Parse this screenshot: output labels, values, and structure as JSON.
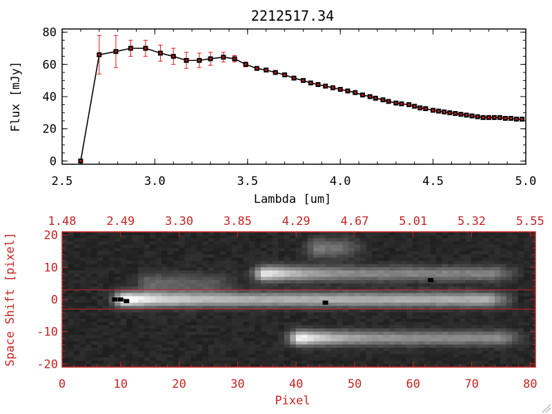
{
  "chart_data": [
    {
      "type": "line",
      "title": "2212517.34",
      "xlabel": "Lambda [um]",
      "ylabel": "Flux [mJy]",
      "xlim": [
        2.5,
        5.0
      ],
      "ylim": [
        -2,
        82
      ],
      "x_tick_labels": [
        "2.5",
        "3.0",
        "3.5",
        "4.0",
        "4.5",
        "5.0"
      ],
      "y_tick_labels": [
        "0",
        "20",
        "40",
        "60",
        "80"
      ],
      "x_tick_values": [
        2.5,
        3.0,
        3.5,
        4.0,
        4.5,
        5.0
      ],
      "y_tick_values": [
        0,
        20,
        40,
        60,
        80
      ],
      "series": [
        {
          "x": [
            2.6,
            2.7,
            2.79,
            2.87,
            2.95,
            3.03,
            3.1,
            3.17,
            3.24,
            3.3,
            3.37,
            3.43,
            3.49,
            3.55,
            3.6,
            3.65,
            3.7,
            3.75,
            3.8,
            3.84,
            3.88,
            3.92,
            3.96,
            4.0,
            4.04,
            4.08,
            4.12,
            4.16,
            4.19,
            4.23,
            4.26,
            4.3,
            4.33,
            4.37,
            4.4,
            4.43,
            4.46,
            4.5,
            4.53,
            4.56,
            4.59,
            4.62,
            4.65,
            4.68,
            4.71,
            4.74,
            4.77,
            4.8,
            4.83,
            4.86,
            4.89,
            4.92,
            4.95,
            4.98
          ],
          "y": [
            0,
            66,
            68,
            70,
            70,
            67,
            65,
            62.5,
            62.5,
            63.5,
            64.5,
            63.5,
            60,
            57.5,
            56.5,
            55,
            53.5,
            51.5,
            50,
            48.5,
            47.5,
            46.5,
            45.5,
            44.5,
            43.5,
            42.5,
            41,
            40,
            39,
            38,
            37,
            36,
            35.5,
            35,
            34,
            33,
            32.5,
            31.5,
            31,
            30.5,
            30,
            29.5,
            29,
            28.5,
            28,
            27.5,
            27,
            27,
            27,
            27,
            26.5,
            26.5,
            26,
            26
          ],
          "yerr": [
            0,
            12,
            10,
            5,
            5,
            5,
            5,
            5,
            4.5,
            4,
            3,
            2,
            1.5,
            1,
            1,
            1,
            1,
            1,
            1,
            1,
            1,
            1,
            1,
            1,
            1,
            1,
            1,
            1,
            1,
            1,
            1,
            1,
            1,
            1,
            1,
            1,
            1,
            1,
            1,
            1,
            1,
            1,
            1,
            1,
            1,
            1,
            1,
            1,
            1,
            1,
            1,
            1,
            1,
            1
          ],
          "line_color": "#000000",
          "marker_color": "#000000",
          "error_color": "#dd1111"
        }
      ]
    },
    {
      "type": "heatmap",
      "xlabel": "Pixel",
      "ylabel": "Space Shift [pixel]",
      "xlim": [
        0,
        80.9
      ],
      "ylim": [
        -21,
        21
      ],
      "x_tick_labels": [
        "0",
        "10",
        "20",
        "30",
        "40",
        "50",
        "60",
        "70",
        "80"
      ],
      "x_tick_values": [
        0,
        10,
        20,
        30,
        40,
        50,
        60,
        70,
        80
      ],
      "y_tick_labels": [
        "-20",
        "-10",
        "0",
        "10",
        "20"
      ],
      "y_tick_values": [
        -20,
        -10,
        0,
        10,
        20
      ],
      "top_axis_labels": [
        "1.48",
        "2.49",
        "3.30",
        "3.85",
        "4.29",
        "4.67",
        "5.01",
        "5.32",
        "5.55"
      ],
      "extraction_lines": [
        3,
        -3
      ],
      "axis_color": "#cc2222",
      "traces": [
        {
          "name": "central",
          "y": 0,
          "x_start": 6,
          "x_end": 77,
          "peak_x": 11,
          "peak": 1.0,
          "tail": 0.55
        },
        {
          "name": "upper",
          "y": 8,
          "x_start": 30,
          "x_end": 78,
          "peak_x": 35,
          "peak": 0.85,
          "tail": 0.35
        },
        {
          "name": "lower",
          "y": -12,
          "x_start": 37,
          "x_end": 79,
          "peak_x": 41,
          "peak": 0.9,
          "tail": 0.38
        },
        {
          "name": "faint-top",
          "y": 16,
          "x_start": 4,
          "x_end": 52,
          "peak_x": 44,
          "peak": 0.32,
          "tail": 0.2
        },
        {
          "name": "faint-mid",
          "y": 5,
          "x_start": 4,
          "x_end": 30,
          "peak_x": 15,
          "peak": 0.25,
          "tail": 0.18
        }
      ],
      "dark_spots": [
        {
          "x": 9,
          "y": 0
        },
        {
          "x": 10,
          "y": 0
        },
        {
          "x": 11,
          "y": -0.5
        },
        {
          "x": 45,
          "y": -1
        },
        {
          "x": 63,
          "y": 6
        }
      ]
    }
  ]
}
